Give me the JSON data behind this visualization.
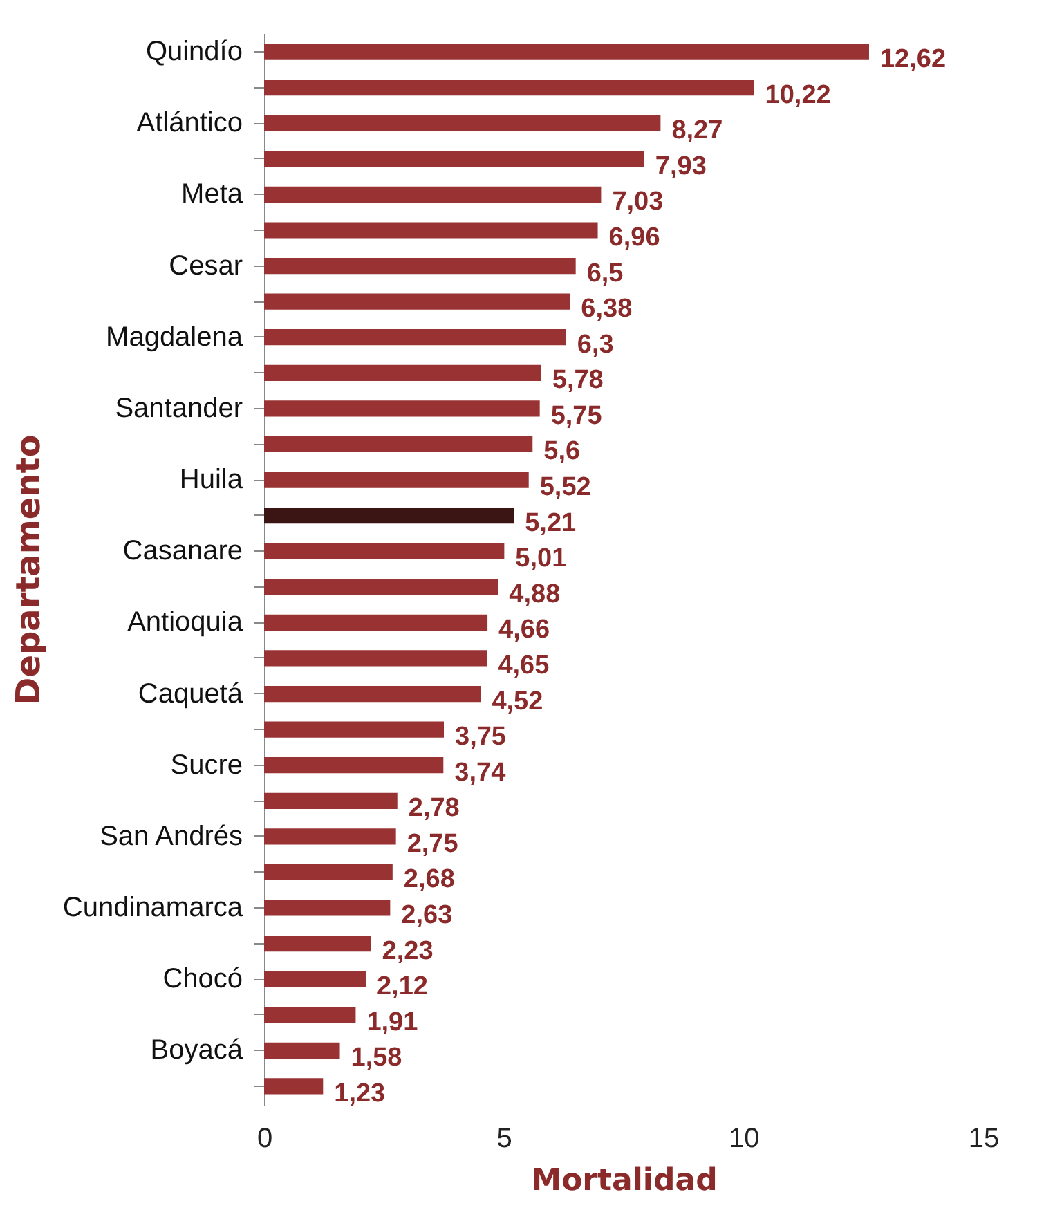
{
  "chart_data": {
    "type": "bar",
    "orientation": "horizontal",
    "xlabel": "Mortalidad",
    "ylabel": "Departamento",
    "categories": [
      "Quindío",
      null,
      "Atlántico",
      null,
      "Meta",
      null,
      "Cesar",
      null,
      "Magdalena",
      null,
      "Santander",
      null,
      "Huila",
      null,
      "Casanare",
      null,
      "Antioquia",
      null,
      "Caquetá",
      null,
      "Sucre",
      null,
      "San Andrés",
      null,
      "Cundinamarca",
      null,
      "Chocó",
      null,
      "Boyacá",
      null
    ],
    "values": [
      12.62,
      10.22,
      8.27,
      7.93,
      7.03,
      6.96,
      6.5,
      6.38,
      6.3,
      5.78,
      5.75,
      5.6,
      5.52,
      5.21,
      5.01,
      4.88,
      4.66,
      4.65,
      4.52,
      3.75,
      3.74,
      2.78,
      2.75,
      2.68,
      2.63,
      2.23,
      2.12,
      1.91,
      1.58,
      1.23
    ],
    "value_labels": [
      "12,62",
      "10,22",
      "8,27",
      "7,93",
      "7,03",
      "6,96",
      "6,5",
      "6,38",
      "6,3",
      "5,78",
      "5,75",
      "5,6",
      "5,52",
      "5,21",
      "5,01",
      "4,88",
      "4,66",
      "4,65",
      "4,52",
      "3,75",
      "3,74",
      "2,78",
      "2,75",
      "2,68",
      "2,63",
      "2,23",
      "2,12",
      "1,91",
      "1,58",
      "1,23"
    ],
    "colors": [
      "#993333",
      "#993333",
      "#993333",
      "#993333",
      "#993333",
      "#993333",
      "#993333",
      "#993333",
      "#993333",
      "#993333",
      "#993333",
      "#993333",
      "#993333",
      "#3b1414",
      "#993333",
      "#993333",
      "#993333",
      "#993333",
      "#993333",
      "#993333",
      "#993333",
      "#993333",
      "#993333",
      "#993333",
      "#993333",
      "#993333",
      "#993333",
      "#993333",
      "#993333",
      "#993333"
    ],
    "xlim": [
      0,
      15
    ],
    "xticks": [
      0,
      5,
      10,
      15
    ],
    "grid": false
  }
}
